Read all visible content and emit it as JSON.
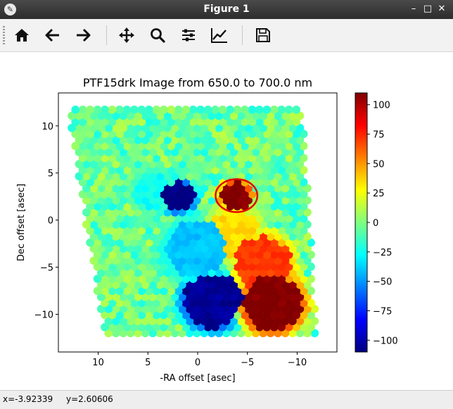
{
  "window": {
    "title": "Figure 1",
    "app_icon": "matplotlib-icon"
  },
  "window_controls": {
    "minimize": "–",
    "maximize": "□",
    "close": "✕"
  },
  "toolbar": {
    "buttons": [
      {
        "name": "home-button",
        "icon": "home-icon"
      },
      {
        "name": "back-button",
        "icon": "arrow-left-icon"
      },
      {
        "name": "forward-button",
        "icon": "arrow-right-icon"
      },
      {
        "name": "pan-button",
        "icon": "move-icon"
      },
      {
        "name": "zoom-button",
        "icon": "magnifier-icon"
      },
      {
        "name": "subplots-button",
        "icon": "sliders-icon"
      },
      {
        "name": "edit-axes-button",
        "icon": "line-chart-icon"
      },
      {
        "name": "save-button",
        "icon": "floppy-disk-icon"
      }
    ]
  },
  "status": {
    "x_label": "x=-3.92339",
    "y_label": "y=2.60606"
  },
  "chart_data": {
    "type": "scatter",
    "title": "PTF15drk Image from 650.0 to 700.0 nm",
    "xlabel": "-RA offset [asec]",
    "ylabel": "Dec offset [asec]",
    "xlim": [
      14.0,
      -14.0
    ],
    "ylim": [
      -14.0,
      13.5
    ],
    "x_ticks": [
      10,
      5,
      0,
      -5,
      -10
    ],
    "y_ticks": [
      10,
      5,
      0,
      -5,
      -10
    ],
    "x_tick_labels": [
      "10",
      "5",
      "0",
      "−5",
      "−10"
    ],
    "y_tick_labels": [
      "10",
      "5",
      "0",
      "−5",
      "−10"
    ],
    "colormap": "jet",
    "colorbar": {
      "min": -110,
      "max": 110,
      "ticks": [
        100,
        75,
        50,
        25,
        0,
        -25,
        -50,
        -75,
        -100
      ],
      "tick_labels": [
        "100",
        "75",
        "50",
        "25",
        "0",
        "−25",
        "−50",
        "−75",
        "−100"
      ]
    },
    "grid": false,
    "spaxel_grid": {
      "spacing": 0.74,
      "footprint": [
        [
          13.0,
          12.0
        ],
        [
          -10.5,
          12.0
        ],
        [
          -12.0,
          -12.0
        ],
        [
          9.5,
          -12.0
        ]
      ],
      "background_value": -5
    },
    "regions": [
      {
        "center": [
          2.0,
          2.5
        ],
        "radius": 1.6,
        "value": -110
      },
      {
        "center": [
          -3.8,
          2.6
        ],
        "radius": 1.5,
        "value": 110
      },
      {
        "center": [
          -1.5,
          -8.5
        ],
        "radius": 2.9,
        "value": -105
      },
      {
        "center": [
          -7.5,
          -8.8
        ],
        "radius": 3.0,
        "value": 110
      },
      {
        "center": [
          -6.5,
          -4.5
        ],
        "radius": 2.8,
        "value": 70
      },
      {
        "center": [
          0.2,
          -3.0
        ],
        "radius": 3.0,
        "value": -40
      },
      {
        "center": [
          -3.5,
          -1.5
        ],
        "radius": 2.6,
        "value": 35
      },
      {
        "center": [
          4.5,
          3.2
        ],
        "radius": 2.0,
        "value": -25
      }
    ],
    "ellipse": {
      "center": [
        -3.9,
        2.6
      ],
      "width": 4.2,
      "height": 3.5,
      "color": "#e30000"
    }
  }
}
